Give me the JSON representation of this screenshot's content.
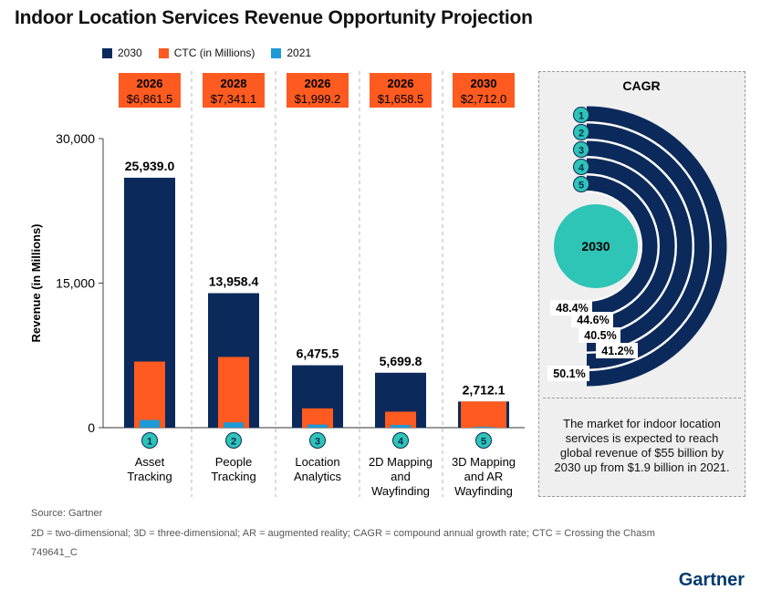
{
  "title": "Indoor Location Services Revenue Opportunity Projection",
  "legend": [
    {
      "label": "2030",
      "color": "#0b2a5b"
    },
    {
      "label": "CTC (in Millions)",
      "color": "#ff5a1f"
    },
    {
      "label": "2021",
      "color": "#1e9ad6"
    }
  ],
  "chart_data": {
    "type": "bar",
    "ylabel": "Revenue (in Millions)",
    "ylim": [
      0,
      30000
    ],
    "yticks": [
      "0",
      "15,000",
      "30,000"
    ],
    "categories": [
      {
        "num": "1",
        "label_lines": [
          "Asset",
          "Tracking"
        ]
      },
      {
        "num": "2",
        "label_lines": [
          "People",
          "Tracking"
        ]
      },
      {
        "num": "3",
        "label_lines": [
          "Location",
          "Analytics"
        ]
      },
      {
        "num": "4",
        "label_lines": [
          "2D Mapping",
          "and",
          "Wayfinding"
        ]
      },
      {
        "num": "5",
        "label_lines": [
          "3D Mapping",
          "and AR",
          "Wayfinding"
        ]
      }
    ],
    "series": [
      {
        "name": "2030",
        "values": [
          25939.0,
          13958.4,
          6475.5,
          5699.8,
          2712.1
        ],
        "labels": [
          "25,939.0",
          "13,958.4",
          "6,475.5",
          "5,699.8",
          "2,712.1"
        ]
      },
      {
        "name": "CTC (in Millions)",
        "values": [
          6861.5,
          7341.1,
          1999.2,
          1658.5,
          2712.0
        ]
      },
      {
        "name": "2021",
        "values": [
          800,
          550,
          320,
          280,
          80
        ]
      }
    ],
    "ctc_boxes": [
      {
        "year": "2026",
        "value": "$6,861.5"
      },
      {
        "year": "2028",
        "value": "$7,341.1"
      },
      {
        "year": "2026",
        "value": "$1,999.2"
      },
      {
        "year": "2026",
        "value": "$1,658.5"
      },
      {
        "year": "2030",
        "value": "$2,712.0"
      }
    ],
    "colors": {
      "bar2030": "#0b2a5b",
      "ctc": "#ff5a1f",
      "y2021": "#1e9ad6",
      "badge": "#2ec4b6"
    }
  },
  "cagr": {
    "title": "CAGR",
    "center_label": "2030",
    "rings": [
      {
        "num": "1",
        "value": "50.1%"
      },
      {
        "num": "2",
        "value": "41.2%"
      },
      {
        "num": "3",
        "value": "40.5%"
      },
      {
        "num": "4",
        "value": "44.6%"
      },
      {
        "num": "5",
        "value": "48.4%"
      }
    ],
    "note": "The market for indoor location services is expected to reach global revenue of $55 billion by 2030 up from $1.9 billion in 2021."
  },
  "footer": {
    "source": "Source: Gartner",
    "abbreviations": "2D = two-dimensional; 3D = three-dimensional; AR = augmented reality; CAGR = compound annual growth rate; CTC = Crossing the Chasm",
    "id": "749641_C"
  },
  "brand": "Gartner"
}
